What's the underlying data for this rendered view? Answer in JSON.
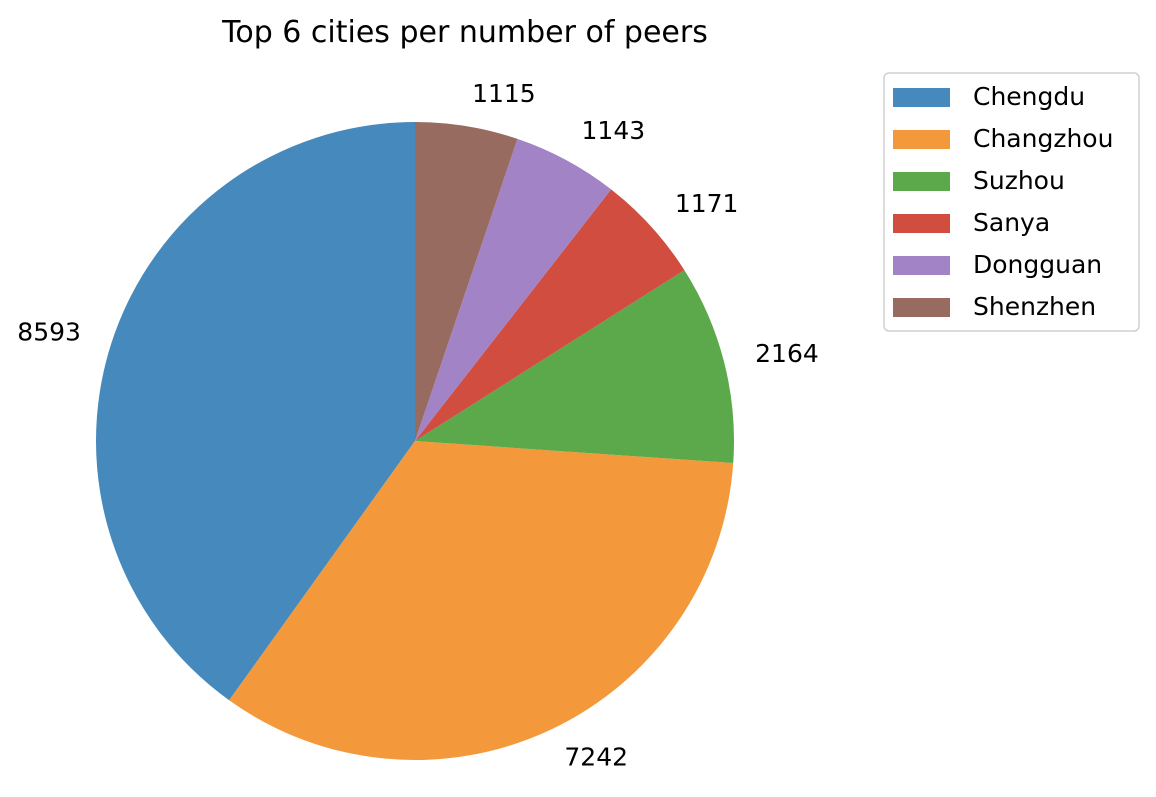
{
  "chart_data": {
    "type": "pie",
    "title": "Top 6 cities per number of peers",
    "start_angle_deg": 90,
    "direction": "counterclockwise",
    "legend_position": "top-right",
    "slices": [
      {
        "label": "Chengdu",
        "value": 8593,
        "display": "8593",
        "color": "#4689bc"
      },
      {
        "label": "Changzhou",
        "value": 7242,
        "display": "7242",
        "color": "#f3993b"
      },
      {
        "label": "Suzhou",
        "value": 2164,
        "display": "2164",
        "color": "#5ba94a"
      },
      {
        "label": "Sanya",
        "value": 1171,
        "display": "1171",
        "color": "#d04d3f"
      },
      {
        "label": "Dongguan",
        "value": 1143,
        "display": "1143",
        "color": "#a283c5"
      },
      {
        "label": "Shenzhen",
        "value": 1115,
        "display": "1115",
        "color": "#976b5f"
      }
    ]
  }
}
